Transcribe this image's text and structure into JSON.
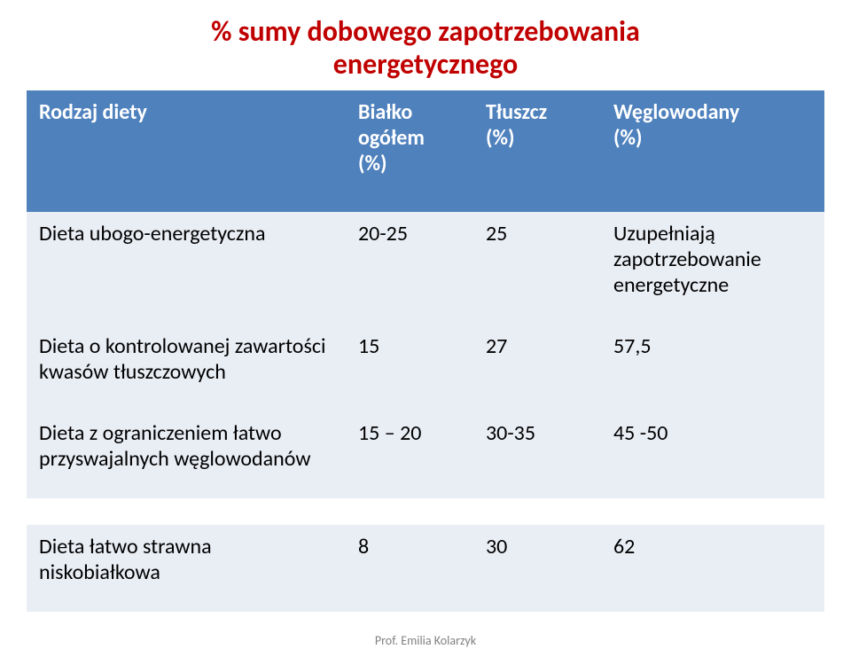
{
  "title": {
    "line1": "% sumy dobowego zapotrzebowania",
    "line2": "energetycznego",
    "color": "#c00000",
    "fontsize": 32,
    "font_weight": 700
  },
  "table": {
    "header_bg": "#4f81bd",
    "header_text_color": "#ffffff",
    "body_text_color": "#000000",
    "header_fontsize": 24,
    "body_fontsize": 24,
    "row_band_color": "#e9edf4",
    "row_band_alt": "#ffffff",
    "columns": {
      "col0": "Rodzaj diety",
      "col1_l1": "Białko",
      "col1_l2": "ogółem",
      "col1_l3": "(%)",
      "col2_l1": "Tłuszcz",
      "col2_l2": "(%)",
      "col3_l1": "Węglowodany",
      "col3_l2": "(%)"
    },
    "rows": [
      {
        "c0": "Dieta ubogo-energetyczna",
        "c1": "20-25",
        "c2": "25",
        "c3": "Uzupełniają zapotrzebowanie energetyczne"
      },
      {
        "c0": "Dieta o kontrolowanej zawartości kwasów tłuszczowych",
        "c1": "15",
        "c2": "27",
        "c3": "57,5"
      },
      {
        "c0": "Dieta z ograniczeniem łatwo przyswajalnych węglowodanów",
        "c1": "15 – 20",
        "c2": "30-35",
        "c3": "45 -50"
      },
      {
        "c0": "Dieta łatwo strawna niskobiałkowa",
        "c1": "8",
        "c2": "30",
        "c3": "62"
      }
    ]
  },
  "footer": {
    "text": "Prof. Emilia Kolarzyk",
    "color": "#808080",
    "fontsize": 14
  }
}
